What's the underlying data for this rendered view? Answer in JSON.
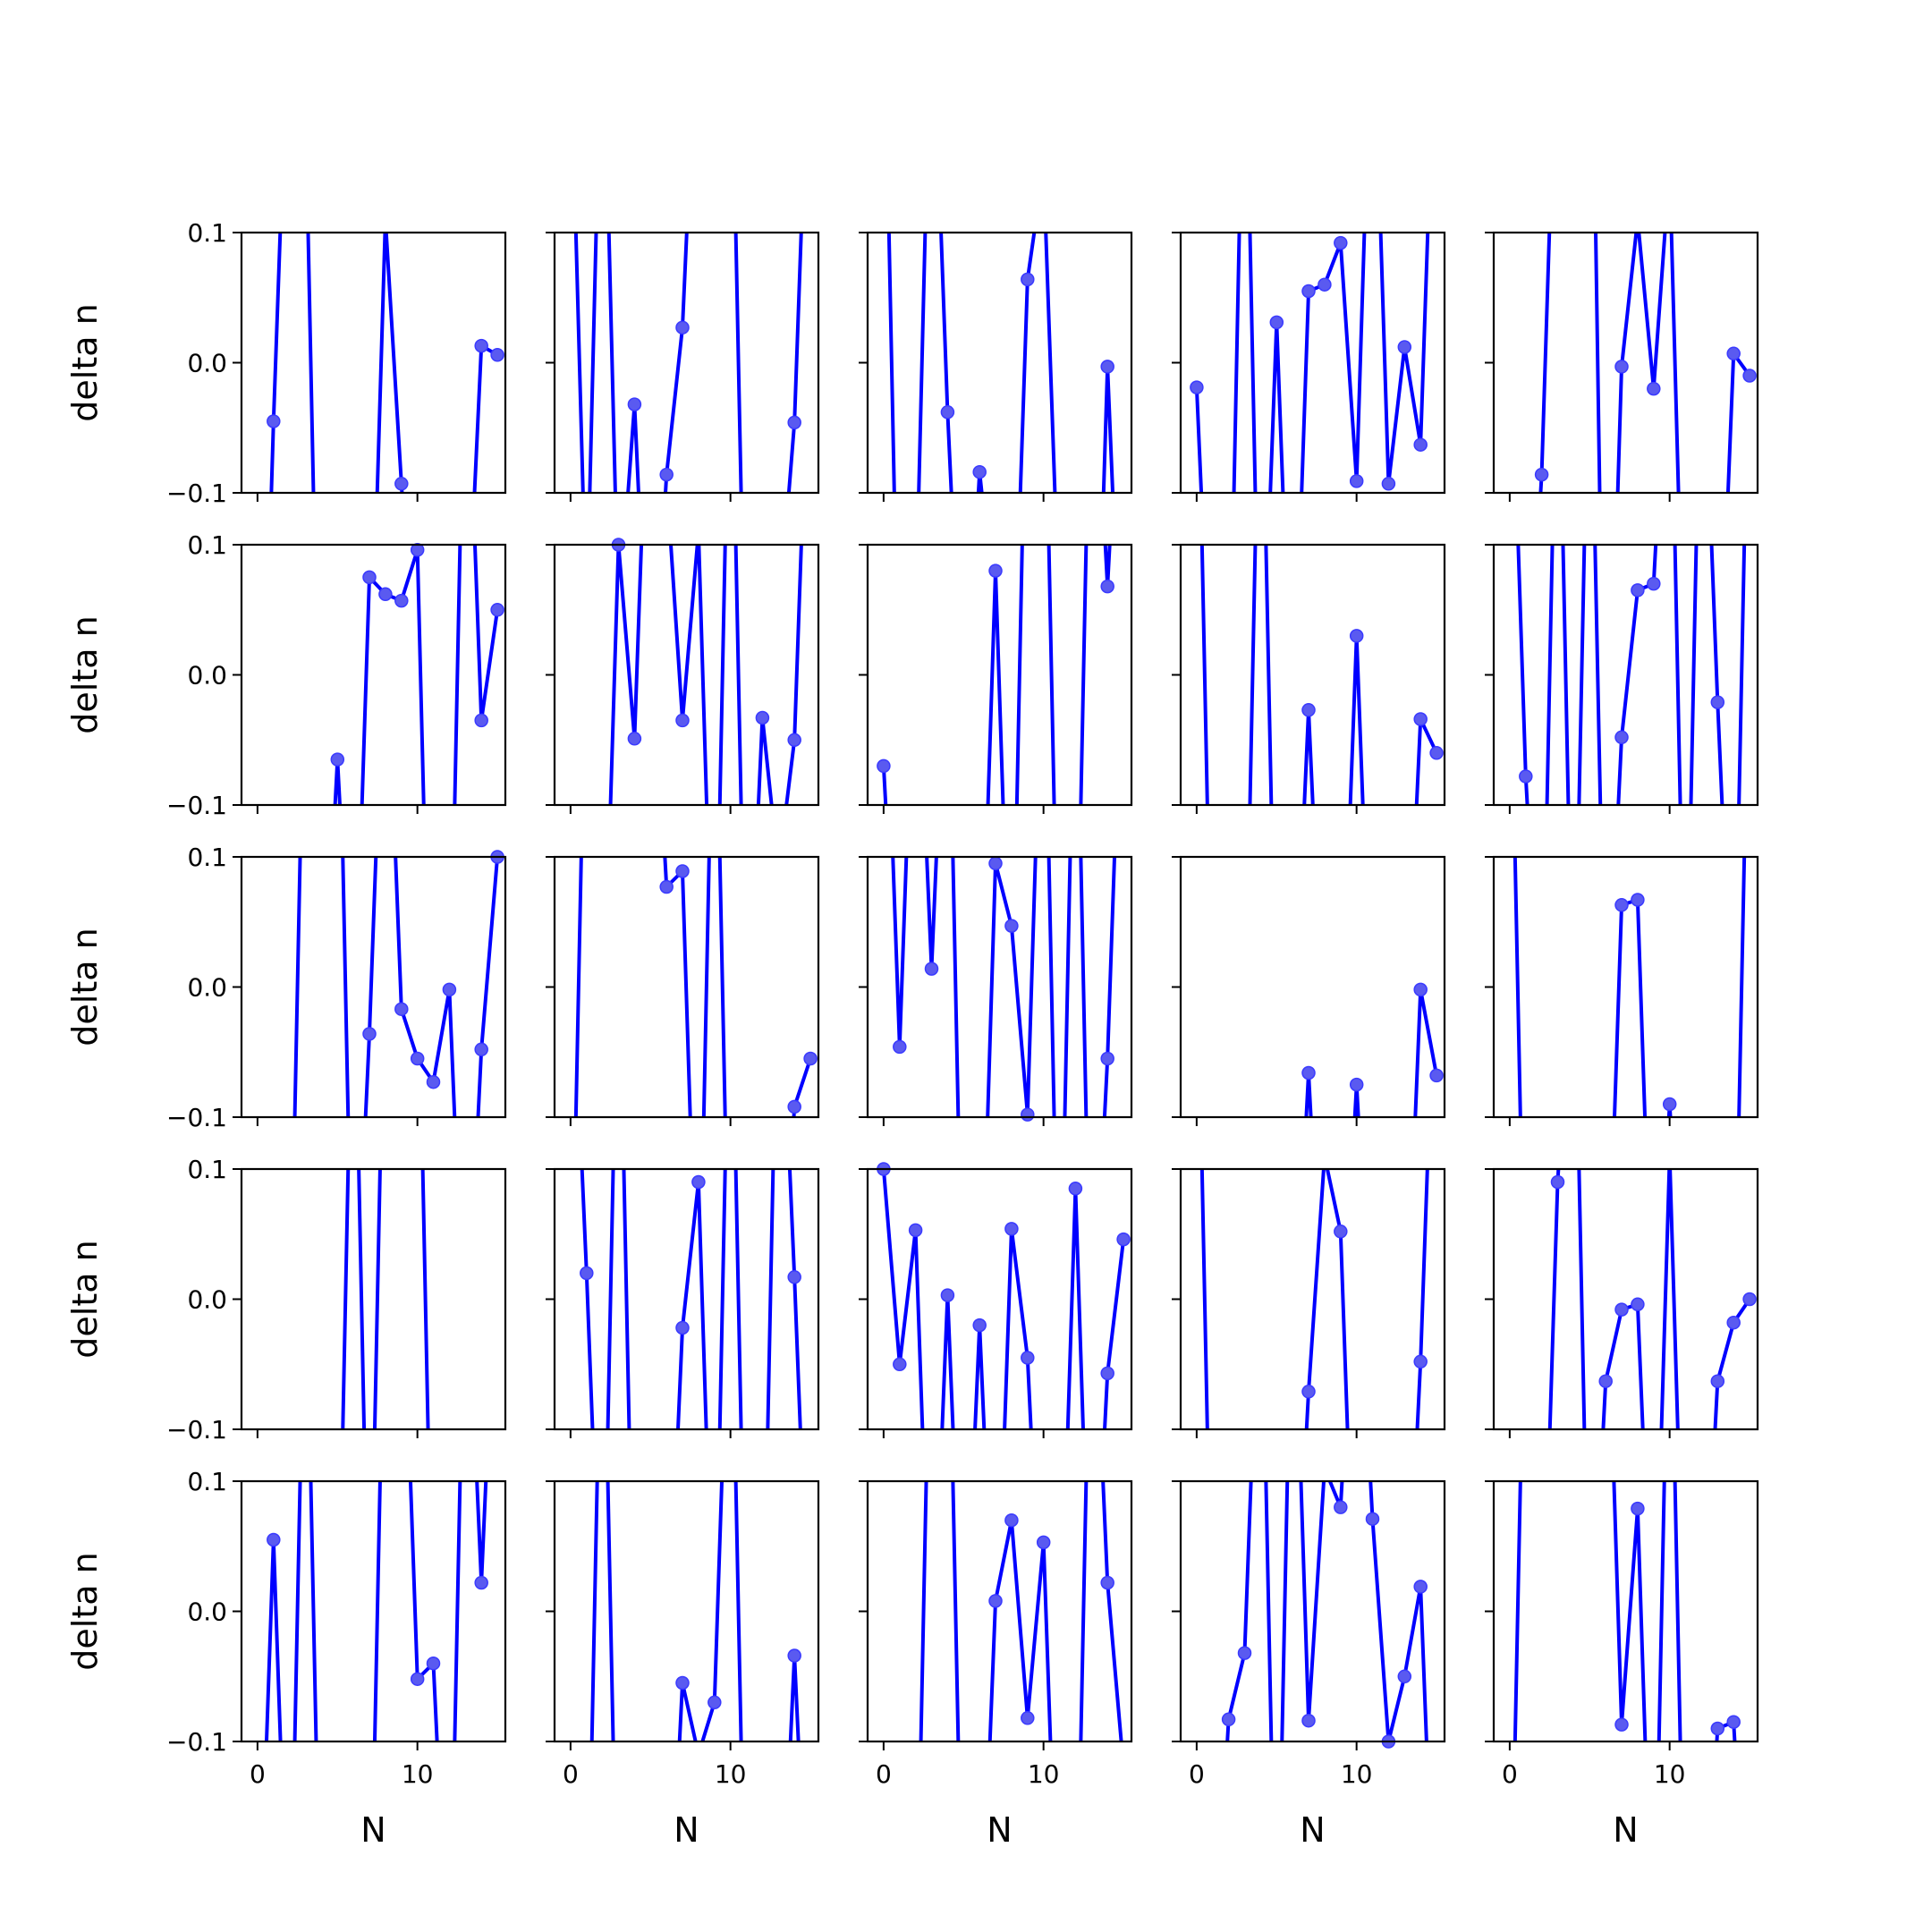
{
  "figure": {
    "rows": 5,
    "cols": 5,
    "x_axis_label": "N",
    "y_axis_label": "delta n",
    "xlim": [
      -1,
      15.5
    ],
    "ylim": [
      -0.1,
      0.1
    ],
    "x_ticks": [
      {
        "value": 0,
        "label": "0"
      },
      {
        "value": 10,
        "label": "10"
      }
    ],
    "y_ticks": [
      {
        "value": -0.1,
        "label": "−0.1"
      },
      {
        "value": 0.0,
        "label": "0.0"
      },
      {
        "value": 0.1,
        "label": "0.1"
      }
    ],
    "line_color": "#0000ff",
    "marker_color": "#5a5af0"
  },
  "chart_data": [
    {
      "type": "line",
      "panel": [
        1,
        1
      ],
      "x": [
        0,
        1,
        2,
        3,
        4,
        5,
        6,
        7,
        8,
        9,
        10,
        11,
        12,
        13,
        14,
        15
      ],
      "values": [
        -0.45,
        -0.045,
        0.3,
        0.2,
        -0.4,
        -0.6,
        -0.5,
        -0.3,
        0.11,
        -0.093,
        -0.3,
        -0.4,
        -0.35,
        -0.25,
        0.013,
        0.006
      ]
    },
    {
      "type": "line",
      "panel": [
        1,
        2
      ],
      "x": [
        0,
        1,
        2,
        3,
        4,
        5,
        6,
        7,
        8,
        9,
        10,
        11,
        12,
        13,
        14,
        15
      ],
      "values": [
        0.25,
        -0.2,
        0.3,
        -0.2,
        -0.032,
        -0.3,
        -0.086,
        0.027,
        0.3,
        0.2,
        0.3,
        -0.3,
        -0.3,
        -0.2,
        -0.046,
        0.3
      ]
    },
    {
      "type": "line",
      "panel": [
        1,
        3
      ],
      "x": [
        0,
        1,
        2,
        3,
        4,
        5,
        6,
        7,
        8,
        9,
        10,
        11,
        12,
        13,
        14,
        15
      ],
      "values": [
        0.3,
        -0.3,
        -0.2,
        0.3,
        -0.038,
        -0.3,
        -0.084,
        -0.2,
        -0.3,
        0.064,
        0.15,
        -0.2,
        -0.3,
        -0.4,
        -0.003,
        -0.3
      ]
    },
    {
      "type": "line",
      "panel": [
        1,
        4
      ],
      "x": [
        0,
        1,
        2,
        3,
        4,
        5,
        6,
        7,
        8,
        9,
        10,
        11,
        12,
        13,
        14,
        15
      ],
      "values": [
        -0.019,
        -0.3,
        -0.3,
        0.3,
        -0.3,
        0.031,
        -0.3,
        0.055,
        0.06,
        0.092,
        -0.091,
        0.3,
        -0.093,
        0.012,
        -0.063,
        0.3
      ]
    },
    {
      "type": "line",
      "panel": [
        1,
        5
      ],
      "x": [
        0,
        1,
        2,
        3,
        4,
        5,
        6,
        7,
        8,
        9,
        10,
        11,
        12,
        13,
        14,
        15
      ],
      "values": [
        -0.4,
        -0.3,
        -0.086,
        0.3,
        0.2,
        0.4,
        -0.4,
        -0.003,
        0.11,
        -0.02,
        0.15,
        -0.3,
        -0.4,
        -0.3,
        0.007,
        -0.01
      ]
    },
    {
      "type": "line",
      "panel": [
        2,
        1
      ],
      "x": [
        0,
        1,
        2,
        3,
        4,
        5,
        6,
        7,
        8,
        9,
        10,
        11,
        12,
        13,
        14,
        15
      ],
      "values": [
        -0.3,
        -0.4,
        -0.3,
        -0.3,
        -0.3,
        -0.065,
        -0.3,
        0.075,
        0.062,
        0.057,
        0.096,
        -0.4,
        -0.3,
        0.3,
        -0.035,
        0.05
      ]
    },
    {
      "type": "line",
      "panel": [
        2,
        2
      ],
      "x": [
        0,
        1,
        2,
        3,
        4,
        5,
        6,
        7,
        8,
        9,
        10,
        11,
        12,
        13,
        14,
        15
      ],
      "values": [
        -0.3,
        -0.3,
        -0.3,
        0.1,
        -0.049,
        0.3,
        0.15,
        -0.035,
        0.11,
        -0.3,
        0.3,
        -0.3,
        -0.033,
        -0.15,
        -0.05,
        0.3
      ]
    },
    {
      "type": "line",
      "panel": [
        2,
        3
      ],
      "x": [
        0,
        1,
        2,
        3,
        4,
        5,
        6,
        7,
        8,
        9,
        10,
        11,
        12,
        13,
        14,
        15
      ],
      "values": [
        -0.07,
        -0.3,
        -0.3,
        -0.3,
        -0.3,
        -0.3,
        -0.3,
        0.08,
        -0.3,
        0.3,
        0.3,
        -0.3,
        -0.3,
        0.3,
        0.068,
        0.3
      ]
    },
    {
      "type": "line",
      "panel": [
        2,
        4
      ],
      "x": [
        0,
        1,
        2,
        3,
        4,
        5,
        6,
        7,
        8,
        9,
        10,
        11,
        12,
        13,
        14,
        15
      ],
      "values": [
        0.3,
        -0.3,
        -0.3,
        -0.3,
        0.3,
        -0.3,
        -0.3,
        -0.027,
        -0.3,
        -0.3,
        0.03,
        -0.3,
        -0.3,
        -0.3,
        -0.034,
        -0.06
      ]
    },
    {
      "type": "line",
      "panel": [
        2,
        5
      ],
      "x": [
        0,
        1,
        2,
        3,
        4,
        5,
        6,
        7,
        8,
        9,
        10,
        11,
        12,
        13,
        14,
        15
      ],
      "values": [
        0.3,
        -0.078,
        -0.3,
        0.3,
        -0.3,
        0.3,
        -0.3,
        -0.048,
        0.065,
        0.07,
        0.3,
        -0.3,
        0.3,
        -0.021,
        -0.3,
        0.3
      ]
    },
    {
      "type": "line",
      "panel": [
        3,
        1
      ],
      "x": [
        0,
        1,
        2,
        3,
        4,
        5,
        6,
        7,
        8,
        9,
        10,
        11,
        12,
        13,
        14,
        15
      ],
      "values": [
        -0.3,
        -0.3,
        -0.3,
        0.3,
        0.3,
        0.3,
        -0.3,
        -0.036,
        0.3,
        -0.017,
        -0.055,
        -0.073,
        -0.002,
        -0.3,
        -0.048,
        0.1
      ]
    },
    {
      "type": "line",
      "panel": [
        3,
        2
      ],
      "x": [
        0,
        1,
        2,
        3,
        4,
        5,
        6,
        7,
        8,
        9,
        10,
        11,
        12,
        13,
        14,
        15
      ],
      "values": [
        -0.3,
        0.3,
        0.3,
        0.3,
        0.3,
        0.3,
        0.077,
        0.089,
        -0.3,
        0.3,
        -0.3,
        -0.3,
        -0.3,
        -0.3,
        -0.092,
        -0.055
      ]
    },
    {
      "type": "line",
      "panel": [
        3,
        3
      ],
      "x": [
        0,
        1,
        2,
        3,
        4,
        5,
        6,
        7,
        8,
        9,
        10,
        11,
        12,
        13,
        14,
        15
      ],
      "values": [
        0.3,
        -0.046,
        0.3,
        0.014,
        0.3,
        -0.3,
        -0.3,
        0.095,
        0.047,
        -0.098,
        0.3,
        -0.3,
        0.3,
        -0.3,
        -0.055,
        0.3
      ]
    },
    {
      "type": "line",
      "panel": [
        3,
        4
      ],
      "x": [
        0,
        1,
        2,
        3,
        4,
        5,
        6,
        7,
        8,
        9,
        10,
        11,
        12,
        13,
        14,
        15
      ],
      "values": [
        -0.3,
        -0.3,
        -0.3,
        -0.3,
        -0.3,
        -0.3,
        -0.3,
        -0.066,
        -0.3,
        -0.3,
        -0.075,
        -0.3,
        -0.3,
        -0.3,
        -0.002,
        -0.068
      ]
    },
    {
      "type": "line",
      "panel": [
        3,
        5
      ],
      "x": [
        0,
        1,
        2,
        3,
        4,
        5,
        6,
        7,
        8,
        9,
        10,
        11,
        12,
        13,
        14,
        15
      ],
      "values": [
        0.3,
        -0.3,
        -0.3,
        -0.3,
        -0.3,
        -0.3,
        -0.3,
        0.063,
        0.067,
        -0.3,
        -0.09,
        -0.3,
        -0.3,
        -0.3,
        -0.3,
        0.3
      ]
    },
    {
      "type": "line",
      "panel": [
        4,
        1
      ],
      "x": [
        0,
        1,
        2,
        3,
        4,
        5,
        6,
        7,
        8,
        9,
        10,
        11,
        12,
        13,
        14,
        15
      ],
      "values": [
        -0.3,
        -0.3,
        -0.3,
        -0.3,
        -0.3,
        -0.3,
        0.3,
        -0.3,
        0.3,
        0.3,
        0.3,
        -0.3,
        -0.3,
        -0.3,
        -0.3,
        -0.3
      ]
    },
    {
      "type": "line",
      "panel": [
        4,
        2
      ],
      "x": [
        0,
        1,
        2,
        3,
        4,
        5,
        6,
        7,
        8,
        9,
        10,
        11,
        12,
        13,
        14,
        15
      ],
      "values": [
        0.3,
        0.02,
        -0.3,
        0.3,
        -0.3,
        -0.3,
        -0.3,
        -0.022,
        0.09,
        -0.3,
        0.3,
        -0.3,
        -0.3,
        0.3,
        0.017,
        -0.3
      ]
    },
    {
      "type": "line",
      "panel": [
        4,
        3
      ],
      "x": [
        0,
        1,
        2,
        3,
        4,
        5,
        6,
        7,
        8,
        9,
        10,
        11,
        12,
        13,
        14,
        15
      ],
      "values": [
        0.1,
        -0.05,
        0.053,
        -0.3,
        0.003,
        -0.3,
        -0.02,
        -0.3,
        0.054,
        -0.045,
        -0.3,
        -0.3,
        0.085,
        -0.3,
        -0.057,
        0.046
      ]
    },
    {
      "type": "line",
      "panel": [
        4,
        4
      ],
      "x": [
        0,
        1,
        2,
        3,
        4,
        5,
        6,
        7,
        8,
        9,
        10,
        11,
        12,
        13,
        14,
        15
      ],
      "values": [
        0.3,
        -0.3,
        -0.3,
        -0.3,
        -0.3,
        -0.3,
        -0.3,
        -0.071,
        0.11,
        0.052,
        -0.3,
        -0.3,
        -0.3,
        -0.3,
        -0.048,
        0.3
      ]
    },
    {
      "type": "line",
      "panel": [
        4,
        5
      ],
      "x": [
        0,
        1,
        2,
        3,
        4,
        5,
        6,
        7,
        8,
        9,
        10,
        11,
        12,
        13,
        14,
        15
      ],
      "values": [
        -0.3,
        -0.3,
        -0.3,
        0.09,
        0.3,
        -0.3,
        -0.063,
        -0.008,
        -0.004,
        -0.3,
        0.11,
        -0.3,
        -0.3,
        -0.063,
        -0.018,
        0.0
      ]
    },
    {
      "type": "line",
      "panel": [
        5,
        1
      ],
      "x": [
        0,
        1,
        2,
        3,
        4,
        5,
        6,
        7,
        8,
        9,
        10,
        11,
        12,
        13,
        14,
        15
      ],
      "values": [
        -0.3,
        0.055,
        -0.3,
        0.3,
        -0.3,
        -0.3,
        -0.3,
        -0.3,
        0.3,
        0.3,
        -0.052,
        -0.04,
        -0.3,
        0.3,
        0.022,
        0.3
      ]
    },
    {
      "type": "line",
      "panel": [
        5,
        2
      ],
      "x": [
        0,
        1,
        2,
        3,
        4,
        5,
        6,
        7,
        8,
        9,
        10,
        11,
        12,
        13,
        14,
        15
      ],
      "values": [
        -0.3,
        -0.3,
        0.3,
        -0.3,
        -0.3,
        -0.3,
        -0.3,
        -0.055,
        -0.11,
        -0.07,
        0.3,
        -0.3,
        -0.3,
        -0.3,
        -0.034,
        -0.3
      ]
    },
    {
      "type": "line",
      "panel": [
        5,
        3
      ],
      "x": [
        0,
        1,
        2,
        3,
        4,
        5,
        6,
        7,
        8,
        9,
        10,
        11,
        12,
        13,
        14,
        15
      ],
      "values": [
        -0.3,
        -0.3,
        -0.3,
        0.3,
        0.3,
        -0.3,
        -0.3,
        0.008,
        0.07,
        -0.082,
        0.053,
        -0.3,
        -0.3,
        0.3,
        0.022,
        -0.12
      ]
    },
    {
      "type": "line",
      "panel": [
        5,
        4
      ],
      "x": [
        0,
        1,
        2,
        3,
        4,
        5,
        6,
        7,
        8,
        9,
        10,
        11,
        12,
        13,
        14,
        15
      ],
      "values": [
        -0.3,
        -0.3,
        -0.083,
        -0.032,
        0.3,
        -0.3,
        0.3,
        -0.084,
        0.11,
        0.08,
        0.3,
        0.071,
        -0.1,
        -0.05,
        0.019,
        -0.3
      ]
    },
    {
      "type": "line",
      "panel": [
        5,
        5
      ],
      "x": [
        0,
        1,
        2,
        3,
        4,
        5,
        6,
        7,
        8,
        9,
        10,
        11,
        12,
        13,
        14,
        15
      ],
      "values": [
        -0.3,
        0.3,
        0.3,
        0.3,
        0.3,
        0.3,
        0.3,
        -0.087,
        0.079,
        -0.3,
        0.3,
        -0.3,
        -0.3,
        -0.09,
        -0.085,
        -0.3
      ]
    }
  ]
}
